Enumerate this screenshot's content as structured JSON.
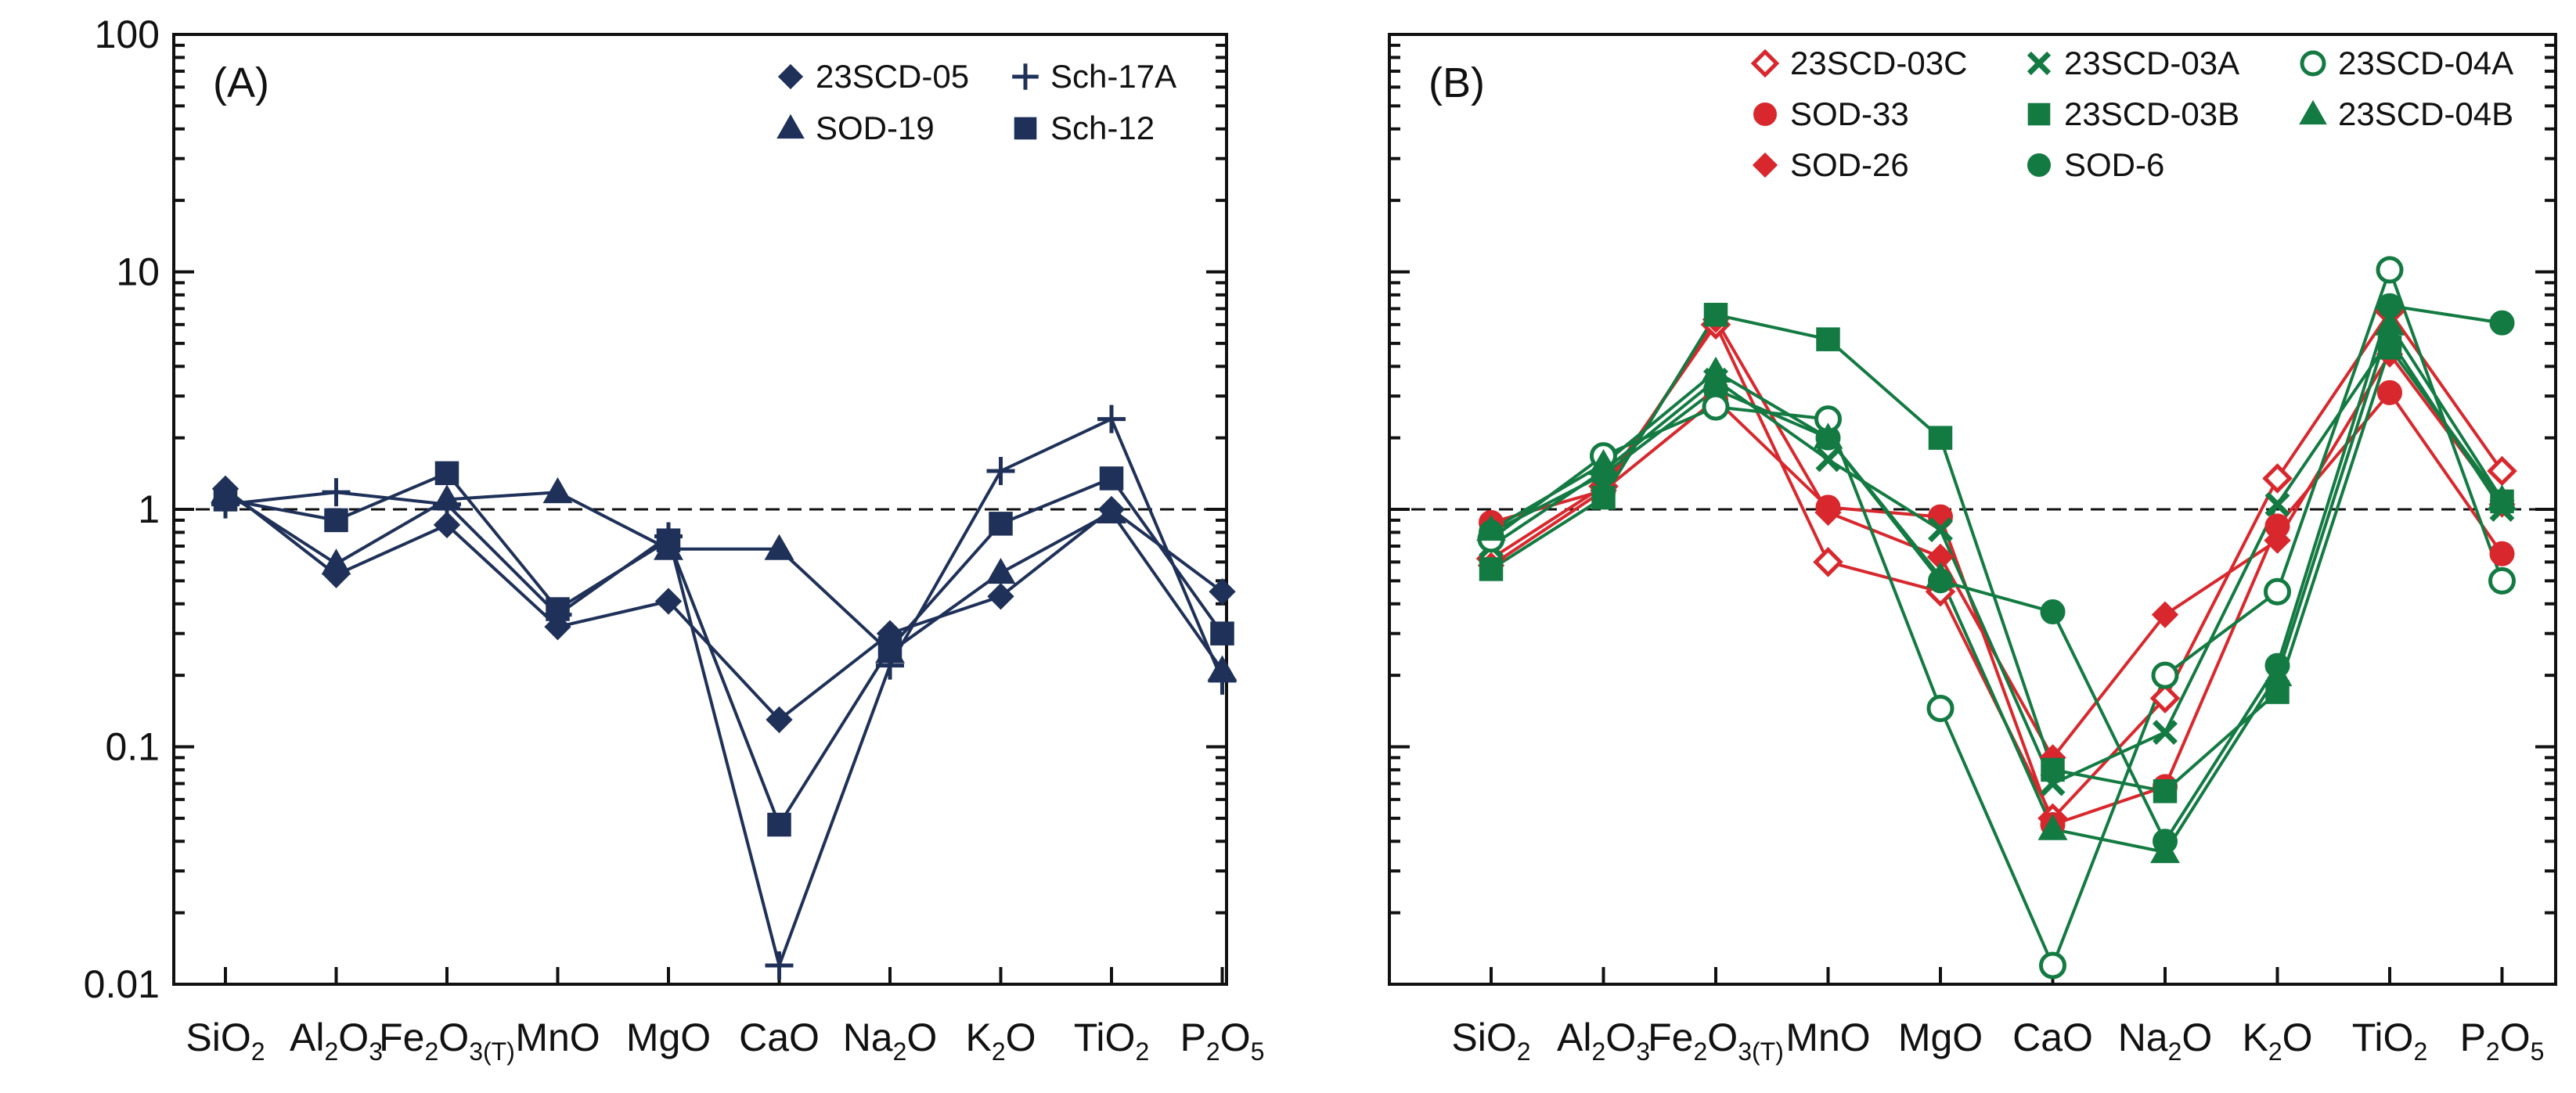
{
  "chart_data": [
    {
      "type": "line",
      "panel_label": "(A)",
      "yscale": "log",
      "ylim": [
        0.01,
        100
      ],
      "y_ticks": [
        "0.01",
        "0.1",
        "1",
        "10",
        "100"
      ],
      "reference_line": 1,
      "categories": [
        "SiO2",
        "Al2O3",
        "Fe2O3(T)",
        "MnO",
        "MgO",
        "CaO",
        "Na2O",
        "K2O",
        "TiO2",
        "P2O5"
      ],
      "category_labels": [
        {
          "main": "SiO",
          "sub": "2"
        },
        {
          "main": "Al",
          "sub": "2",
          "main2": "O",
          "sub2": "3"
        },
        {
          "main": "Fe",
          "sub": "2",
          "main2": "O",
          "sub2": "3(T)"
        },
        {
          "main": "MnO"
        },
        {
          "main": "MgO"
        },
        {
          "main": "CaO"
        },
        {
          "main": "Na",
          "sub": "2",
          "main2": "O"
        },
        {
          "main": "K",
          "sub": "2",
          "main2": "O"
        },
        {
          "main": "TiO",
          "sub": "2"
        },
        {
          "main": "P",
          "sub": "2",
          "main2": "O",
          "sub2": "5"
        }
      ],
      "legend_position": "top-right",
      "legend_columns": 2,
      "series": [
        {
          "name": "23SCD-05",
          "marker": "diamond",
          "filled": true,
          "color": "#1f3158",
          "values": [
            1.22,
            0.53,
            0.86,
            0.32,
            0.41,
            0.13,
            0.3,
            0.43,
            1.0,
            0.45
          ]
        },
        {
          "name": "SOD-19",
          "marker": "triangle",
          "filled": true,
          "color": "#1f3158",
          "values": [
            1.18,
            0.59,
            1.1,
            1.18,
            0.68,
            0.68,
            0.25,
            0.54,
            0.97,
            0.21
          ]
        },
        {
          "name": "Sch-17A",
          "marker": "plus",
          "filled": true,
          "color": "#1f3158",
          "values": [
            1.05,
            1.18,
            1.05,
            0.36,
            0.77,
            0.012,
            0.22,
            1.45,
            2.4,
            0.19
          ]
        },
        {
          "name": "Sch-12",
          "marker": "square",
          "filled": true,
          "color": "#1f3158",
          "values": [
            1.1,
            0.9,
            1.42,
            0.38,
            0.74,
            0.047,
            0.26,
            0.87,
            1.35,
            0.3
          ]
        }
      ]
    },
    {
      "type": "line",
      "panel_label": "(B)",
      "yscale": "log",
      "ylim": [
        0.01,
        100
      ],
      "y_ticks": [
        "0.01",
        "0.1",
        "1",
        "10",
        "100"
      ],
      "reference_line": 1,
      "categories": [
        "SiO2",
        "Al2O3",
        "Fe2O3(T)",
        "MnO",
        "MgO",
        "CaO",
        "Na2O",
        "K2O",
        "TiO2",
        "P2O5"
      ],
      "category_labels": [
        {
          "main": "SiO",
          "sub": "2"
        },
        {
          "main": "Al",
          "sub": "2",
          "main2": "O",
          "sub2": "3"
        },
        {
          "main": "Fe",
          "sub": "2",
          "main2": "O",
          "sub2": "3(T)"
        },
        {
          "main": "MnO"
        },
        {
          "main": "MgO"
        },
        {
          "main": "CaO"
        },
        {
          "main": "Na",
          "sub": "2",
          "main2": "O"
        },
        {
          "main": "K",
          "sub": "2",
          "main2": "O"
        },
        {
          "main": "TiO",
          "sub": "2"
        },
        {
          "main": "P",
          "sub": "2",
          "main2": "O",
          "sub2": "5"
        }
      ],
      "legend_position": "top-right",
      "legend_columns": 3,
      "series": [
        {
          "name": "23SCD-03C",
          "marker": "diamond",
          "filled": false,
          "color": "#d8282d",
          "values": [
            0.62,
            1.25,
            6.0,
            0.6,
            0.45,
            0.05,
            0.16,
            1.35,
            6.8,
            1.45
          ]
        },
        {
          "name": "SOD-33",
          "marker": "circle",
          "filled": true,
          "color": "#d8282d",
          "values": [
            0.88,
            1.2,
            2.9,
            1.02,
            0.93,
            0.047,
            0.068,
            0.85,
            3.1,
            0.65
          ]
        },
        {
          "name": "SOD-26",
          "marker": "diamond",
          "filled": true,
          "color": "#d8282d",
          "values": [
            0.58,
            1.2,
            6.3,
            0.97,
            0.63,
            0.09,
            0.36,
            0.74,
            4.5,
            1.05
          ]
        },
        {
          "name": "23SCD-03A",
          "marker": "x",
          "filled": true,
          "color": "#137a42",
          "values": [
            0.7,
            1.45,
            3.5,
            1.62,
            0.82,
            0.07,
            0.115,
            1.05,
            5.2,
            1.0
          ]
        },
        {
          "name": "23SCD-03B",
          "marker": "square",
          "filled": true,
          "color": "#137a42",
          "values": [
            0.56,
            1.12,
            6.6,
            5.2,
            2.0,
            0.08,
            0.065,
            0.17,
            4.8,
            1.08
          ]
        },
        {
          "name": "SOD-6",
          "marker": "circle",
          "filled": true,
          "color": "#137a42",
          "values": [
            0.8,
            1.4,
            3.2,
            2.0,
            0.5,
            0.37,
            0.04,
            0.22,
            7.2,
            6.1
          ]
        },
        {
          "name": "23SCD-04A",
          "marker": "circle",
          "filled": false,
          "color": "#137a42",
          "values": [
            0.75,
            1.68,
            2.7,
            2.4,
            0.145,
            0.012,
            0.2,
            0.45,
            10.2,
            0.5
          ]
        },
        {
          "name": "23SCD-04B",
          "marker": "triangle",
          "filled": true,
          "color": "#137a42",
          "values": [
            0.82,
            1.55,
            3.8,
            2.0,
            0.52,
            0.045,
            0.036,
            0.2,
            6.0,
            1.1
          ]
        }
      ]
    }
  ]
}
